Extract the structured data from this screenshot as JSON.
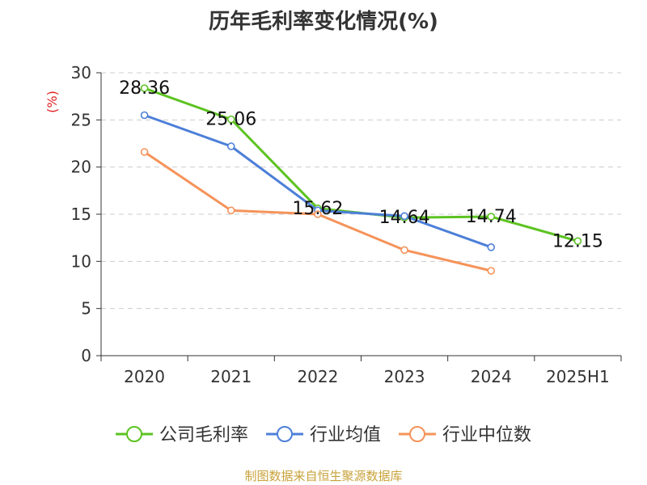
{
  "chart_data": {
    "type": "line",
    "title": "历年毛利率变化情况(%)",
    "ylabel": "(%)",
    "categories": [
      "2020",
      "2021",
      "2022",
      "2023",
      "2024",
      "2025H1"
    ],
    "ylim": [
      0,
      30
    ],
    "yticks": [
      "0",
      "5",
      "10",
      "15",
      "20",
      "25",
      "30"
    ],
    "grid": true,
    "legend_position": "bottom",
    "series": [
      {
        "name": "公司毛利率",
        "color": "#5cc321",
        "values": [
          28.36,
          25.06,
          15.62,
          14.64,
          14.74,
          12.15
        ],
        "labels": [
          "28.36",
          "25.06",
          "15.62",
          "14.64",
          "14.74",
          "12.15"
        ]
      },
      {
        "name": "行业均值",
        "color": "#4d7fd8",
        "values": [
          25.5,
          22.2,
          15.4,
          14.8,
          11.5,
          null
        ],
        "labels": []
      },
      {
        "name": "行业中位数",
        "color": "#f5935a",
        "values": [
          21.6,
          15.4,
          15.0,
          11.2,
          9.0,
          null
        ],
        "labels": []
      }
    ]
  },
  "source": {
    "text": "制图数据来自恒生聚源数据库",
    "color": "#c8a23a"
  },
  "ylabel_color": "#e02020"
}
